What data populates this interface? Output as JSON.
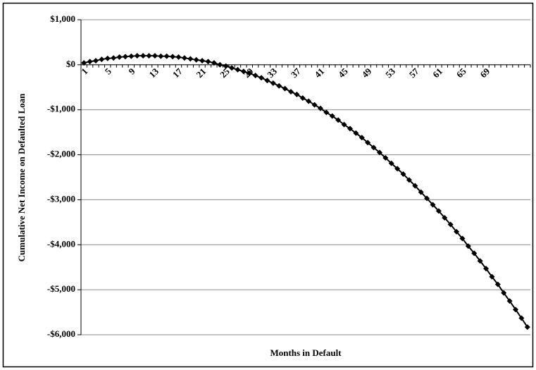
{
  "chart_data": {
    "type": "line",
    "y_label": "Cumulative Net Income on Defaulted Loan",
    "x_label": "Months in Default",
    "categories": [
      1,
      null,
      null,
      null,
      5,
      null,
      null,
      null,
      9,
      null,
      null,
      null,
      13,
      null,
      null,
      null,
      17,
      null,
      null,
      null,
      21,
      null,
      null,
      null,
      25,
      null,
      null,
      null,
      29,
      null,
      null,
      null,
      33,
      null,
      null,
      null,
      37,
      null,
      null,
      null,
      41,
      null,
      null,
      null,
      45,
      null,
      null,
      null,
      49,
      null,
      null,
      null,
      53,
      null,
      null,
      null,
      57,
      null,
      null,
      null,
      61,
      null,
      null,
      null,
      65,
      null,
      null,
      null,
      69,
      null,
      null,
      null,
      null,
      null,
      null,
      null
    ],
    "series": [
      {
        "name": "Cumulative Net Income",
        "color": "#000000",
        "values": [
          40,
          70,
          90,
          120,
          140,
          150,
          170,
          180,
          190,
          200,
          200,
          200,
          200,
          190,
          190,
          180,
          170,
          150,
          130,
          110,
          90,
          70,
          40,
          0,
          -30,
          -70,
          -110,
          -150,
          -190,
          -240,
          -290,
          -350,
          -410,
          -470,
          -530,
          -600,
          -660,
          -740,
          -810,
          -890,
          -970,
          -1060,
          -1140,
          -1230,
          -1330,
          -1420,
          -1520,
          -1620,
          -1730,
          -1840,
          -1950,
          -2070,
          -2190,
          -2310,
          -2430,
          -2560,
          -2690,
          -2830,
          -2970,
          -3110,
          -3250,
          -3400,
          -3550,
          -3710,
          -3860,
          -4030,
          -4190,
          -4360,
          -4530,
          -4710,
          -4880,
          -5070,
          -5250,
          -5440,
          -5630,
          -5830
        ]
      }
    ],
    "ylim": [
      -6000,
      1000
    ],
    "yticks": [
      {
        "value": -6000,
        "label": "-$6,000"
      },
      {
        "value": -5000,
        "label": "-$5,000"
      },
      {
        "value": -4000,
        "label": "-$4,000"
      },
      {
        "value": -3000,
        "label": "-$3,000"
      },
      {
        "value": -2000,
        "label": "-$2,000"
      },
      {
        "value": -1000,
        "label": "-$1,000"
      },
      {
        "value": 0,
        "label": "$0"
      },
      {
        "value": 1000,
        "label": "$1,000"
      }
    ],
    "grid": true,
    "marker": "diamond"
  }
}
